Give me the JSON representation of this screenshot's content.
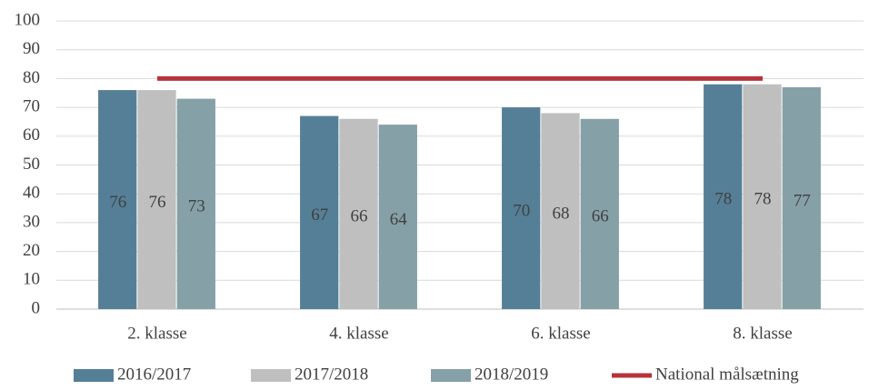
{
  "chart_data": {
    "type": "bar",
    "categories": [
      "2. klasse",
      "4. klasse",
      "6. klasse",
      "8. klasse"
    ],
    "series": [
      {
        "name": "2016/2017",
        "color": "#557f97",
        "values": [
          76,
          67,
          70,
          78
        ]
      },
      {
        "name": "2017/2018",
        "color": "#bfbfbf",
        "values": [
          76,
          66,
          68,
          78
        ]
      },
      {
        "name": "2018/2019",
        "color": "#86a0a8",
        "values": [
          73,
          64,
          66,
          77
        ]
      },
      {
        "name": "National målsætning",
        "color": "#b6333b",
        "type": "line",
        "values": [
          80,
          80,
          80,
          80
        ]
      }
    ],
    "ylim": [
      0,
      100
    ],
    "yticks": [
      0,
      10,
      20,
      30,
      40,
      50,
      60,
      70,
      80,
      90,
      100
    ],
    "grid": true,
    "legend": "bottom"
  }
}
